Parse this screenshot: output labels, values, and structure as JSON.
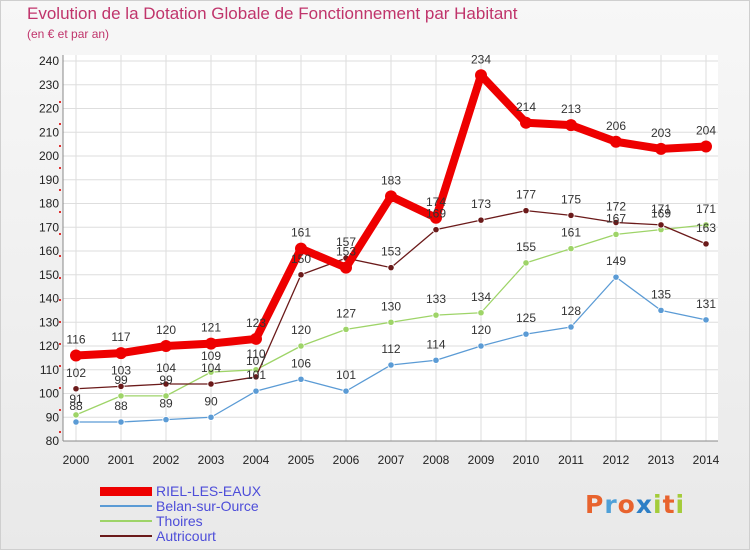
{
  "header": {
    "title": "Evolution de la Dotation Globale de Fonctionnement par Habitant",
    "subtitle": "(en € et par an)"
  },
  "brand": {
    "letters": [
      "P",
      "r",
      "o",
      "x",
      "i",
      "t",
      "i"
    ],
    "colors": [
      "#e8632e",
      "#4fa0d8",
      "#e8632e",
      "#2e7fc6",
      "#a4cc3a",
      "#e8632e",
      "#a4cc3a"
    ]
  },
  "chart_data": {
    "type": "line",
    "title": "Evolution de la Dotation Globale de Fonctionnement par Habitant",
    "subtitle": "(en € et par an)",
    "x": [
      "2000",
      "2001",
      "2002",
      "2003",
      "2004",
      "2005",
      "2006",
      "2007",
      "2008",
      "2009",
      "2010",
      "2011",
      "2012",
      "2013",
      "2014"
    ],
    "ylim": [
      80,
      240
    ],
    "yticks": [
      80,
      90,
      100,
      110,
      120,
      130,
      140,
      150,
      160,
      170,
      180,
      190,
      200,
      210,
      220,
      230,
      240
    ],
    "grid": true,
    "legend_position": "bottom-left",
    "series": [
      {
        "name": "RIEL-LES-EAUX",
        "color": "#ee0000",
        "values": [
          116,
          117,
          120,
          121,
          123,
          161,
          153,
          183,
          174,
          234,
          214,
          213,
          206,
          203,
          204
        ],
        "labels": [
          "116",
          "117",
          "120",
          "121",
          "123",
          "161",
          "153",
          "183",
          "174",
          "234",
          "214",
          "213",
          "206",
          "203",
          "204"
        ]
      },
      {
        "name": "Belan-sur-Ource",
        "color": "#5b9bd5",
        "values": [
          88,
          88,
          89,
          90,
          101,
          106,
          101,
          112,
          114,
          120,
          125,
          128,
          149,
          135,
          131
        ],
        "labels": [
          "88",
          "88",
          "89",
          "90",
          "101",
          "106",
          "101",
          "112",
          "114",
          "120",
          "125",
          "128",
          "149",
          "135",
          "131"
        ]
      },
      {
        "name": "Thoires",
        "color": "#9ed468",
        "values": [
          91,
          99,
          99,
          109,
          110,
          120,
          127,
          130,
          133,
          134,
          155,
          161,
          167,
          169,
          171
        ],
        "labels": [
          "91",
          "99",
          "99",
          "109",
          "110",
          "120",
          "127",
          "130",
          "133",
          "134",
          "155",
          "161",
          "167",
          "169",
          "171"
        ]
      },
      {
        "name": "Autricourt",
        "color": "#6b1a1a",
        "values": [
          102,
          103,
          104,
          104,
          107,
          150,
          157,
          153,
          169,
          173,
          177,
          175,
          172,
          171,
          163
        ],
        "labels": [
          "102",
          "103",
          "104",
          "104",
          "107",
          "150",
          "157",
          "153",
          "169",
          "173",
          "177",
          "175",
          "172",
          "171",
          "163"
        ]
      }
    ]
  }
}
